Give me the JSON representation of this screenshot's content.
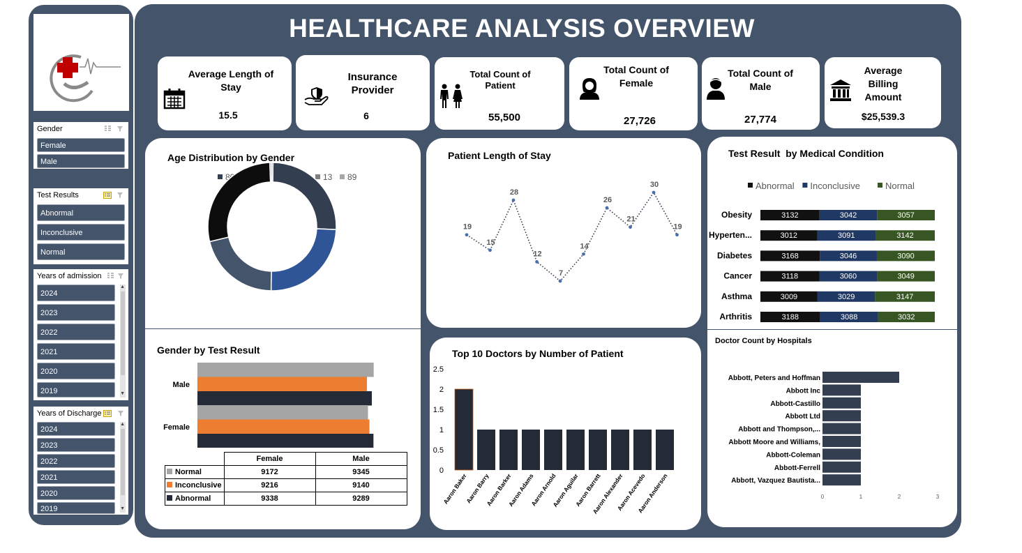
{
  "title": "HEALTHCARE ANALYSIS OVERVIEW",
  "kpis": [
    {
      "label": "Average Length of Stay",
      "value": "15.5",
      "icon": "calendar-icon"
    },
    {
      "label": "Insurance Provider",
      "value": "6",
      "icon": "insurance-hand-shield-icon"
    },
    {
      "label": "Total Count of Patient",
      "value": "55,500",
      "icon": "couple-icon"
    },
    {
      "label": "Total Count of Female",
      "value": "27,726",
      "icon": "female-icon"
    },
    {
      "label": "Total Count of Male",
      "value": "27,774",
      "icon": "male-icon"
    },
    {
      "label": "Average Billing Amount",
      "value": "$25,539.3",
      "icon": "bank-icon"
    }
  ],
  "slicers": {
    "gender": {
      "title": "Gender",
      "items": [
        "Female",
        "Male"
      ]
    },
    "test_results": {
      "title": "Test Results",
      "items": [
        "Abnormal",
        "Inconclusive",
        "Normal"
      ]
    },
    "admission": {
      "title": "Years of admission",
      "items": [
        "2024",
        "2023",
        "2022",
        "2021",
        "2020",
        "2019"
      ]
    },
    "discharge": {
      "title": "Years of Discharge",
      "items": [
        "2024",
        "2023",
        "2022",
        "2021",
        "2020",
        "2019"
      ]
    }
  },
  "colors": {
    "panel": "#44546a",
    "black": "#111111",
    "navy": "#203864",
    "green": "#375623",
    "orange": "#ed7d31",
    "grey": "#a5a5a5",
    "dark": "#242a36"
  },
  "chart_data": [
    {
      "type": "pie",
      "title": "Age Distribution by Gender",
      "categories": [
        "80",
        "25",
        "60",
        "40",
        "13",
        "89"
      ],
      "values": [
        25.5,
        24.5,
        21,
        28.2,
        0.4,
        0.4
      ],
      "colors": [
        "#333f50",
        "#2f5597",
        "#44546a",
        "#0d0d0d",
        "#7f7f7f",
        "#a6a6a6"
      ],
      "legend": "top"
    },
    {
      "type": "line",
      "title": "Patient Length of Stay",
      "values": [
        19,
        15,
        28,
        12,
        7,
        14,
        26,
        21,
        30,
        19
      ],
      "style": "dotted",
      "data_labels": true
    },
    {
      "type": "bar",
      "title": "Test Result  by Medical Condition",
      "orientation": "horizontal-stacked",
      "categories": [
        "Obesity",
        "Hyperten...",
        "Diabetes",
        "Cancer",
        "Asthma",
        "Arthritis"
      ],
      "series": [
        {
          "name": "Abnormal",
          "values": [
            3132,
            3012,
            3168,
            3118,
            3009,
            3188
          ],
          "color": "#111111"
        },
        {
          "name": "Inconclusive",
          "values": [
            3042,
            3091,
            3046,
            3060,
            3029,
            3088
          ],
          "color": "#203864"
        },
        {
          "name": "Normal",
          "values": [
            3057,
            3142,
            3090,
            3049,
            3147,
            3032
          ],
          "color": "#375623"
        }
      ],
      "legend": "top"
    },
    {
      "type": "bar",
      "title": "Gender by Test Result",
      "orientation": "horizontal",
      "categories": [
        "Female",
        "Male"
      ],
      "series": [
        {
          "name": "Normal",
          "values": [
            9172,
            9345
          ],
          "color": "#a5a5a5"
        },
        {
          "name": "Inconclusive",
          "values": [
            9216,
            9140
          ],
          "color": "#ed7d31"
        },
        {
          "name": "Abnormal",
          "values": [
            9338,
            9289
          ],
          "color": "#242a36"
        }
      ],
      "table_headers": [
        "Female",
        "Male"
      ]
    },
    {
      "type": "bar",
      "title": "Top 10 Doctors by Number of Patient",
      "categories": [
        "Aaron Baker",
        "Aaron Barry",
        "Aaron Barker",
        "Aaron Adams",
        "Aaron Arnold",
        "Aaron Aguilar",
        "Aaron Barrett",
        "Aaron Alexander",
        "Aaron Acevedo",
        "Aaron Anderson"
      ],
      "values": [
        2,
        1,
        1,
        1,
        1,
        1,
        1,
        1,
        1,
        1
      ],
      "ylim": [
        0,
        2.5
      ],
      "yticks": [
        "0",
        "0.5",
        "1",
        "1.5",
        "2",
        "2.5"
      ]
    },
    {
      "type": "bar",
      "title": "Doctor Count by Hospitals",
      "orientation": "horizontal",
      "categories": [
        "Abbott, Peters and Hoffman",
        "Abbott Inc",
        "Abbott-Castillo",
        "Abbott Ltd",
        "Abbott and Thompson,...",
        "Abbott Moore and Williams,",
        "Abbott-Coleman",
        "Abbott-Ferrell",
        "Abbott, Vazquez Bautista..."
      ],
      "values": [
        2,
        1,
        1,
        1,
        1,
        1,
        1,
        1,
        1
      ],
      "xlim": [
        0,
        3
      ],
      "xticks": [
        "0",
        "1",
        "2",
        "3"
      ]
    }
  ]
}
